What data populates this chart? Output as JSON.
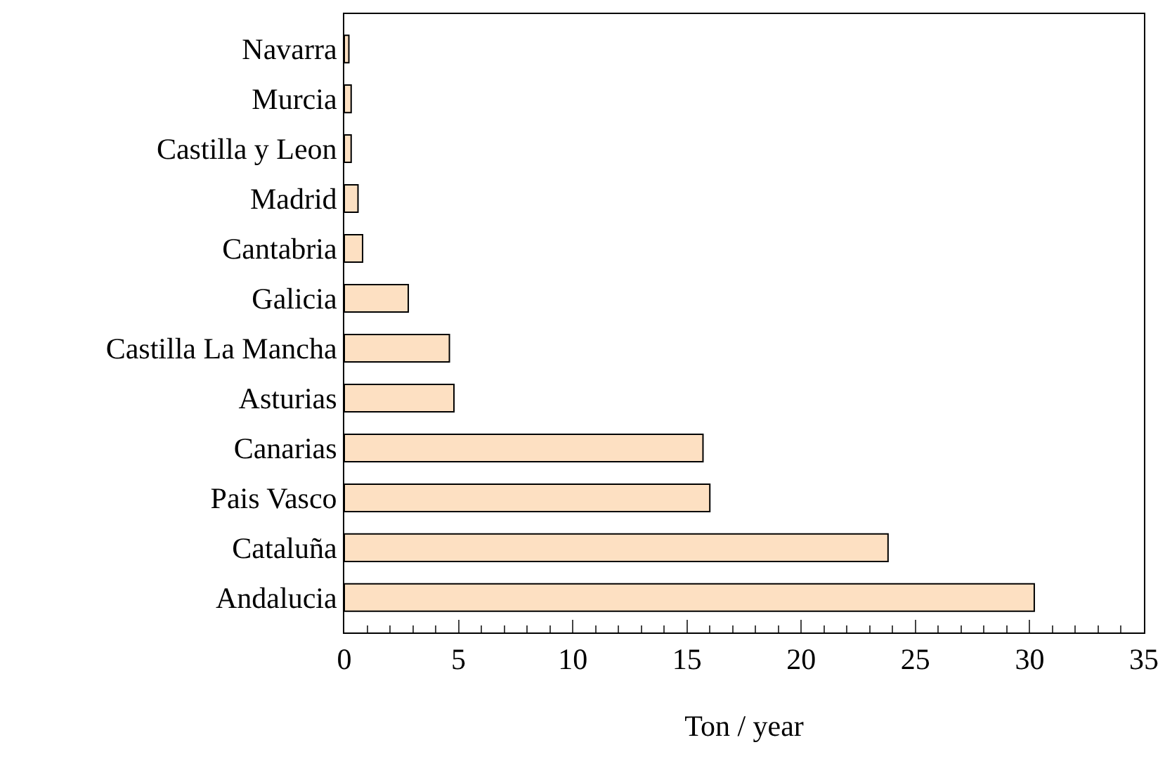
{
  "chart_data": {
    "type": "bar",
    "orientation": "horizontal",
    "xlabel": "Ton / year",
    "categories": [
      "Navarra",
      "Murcia",
      "Castilla y Leon",
      "Madrid",
      "Cantabria",
      "Galicia",
      "Castilla La Mancha",
      "Asturias",
      "Canarias",
      "Pais Vasco",
      "Cataluña",
      "Andalucia"
    ],
    "values": [
      0.2,
      0.3,
      0.3,
      0.6,
      0.8,
      2.8,
      4.6,
      4.8,
      15.7,
      16.0,
      23.8,
      30.2
    ],
    "color": "#fde0c2",
    "xlim": [
      0,
      35
    ],
    "xticks": [
      0,
      5,
      10,
      15,
      20,
      25,
      30,
      35
    ],
    "grid": false,
    "legend": false
  }
}
